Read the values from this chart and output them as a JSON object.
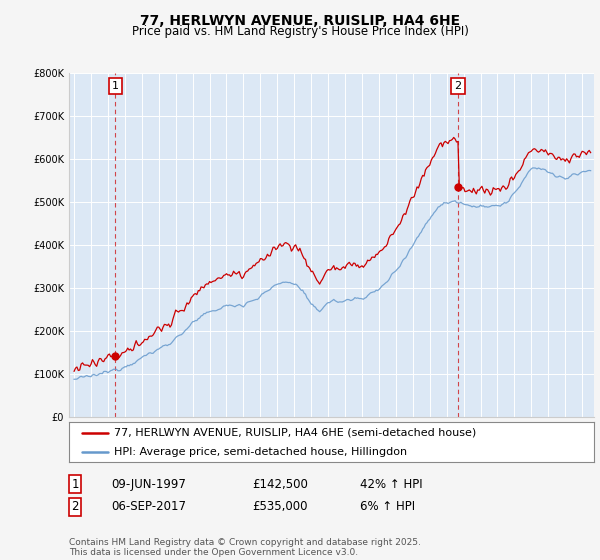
{
  "title": "77, HERLWYN AVENUE, RUISLIP, HA4 6HE",
  "subtitle": "Price paid vs. HM Land Registry's House Price Index (HPI)",
  "legend_line1": "77, HERLWYN AVENUE, RUISLIP, HA4 6HE (semi-detached house)",
  "legend_line2": "HPI: Average price, semi-detached house, Hillingdon",
  "annotation1": {
    "label": "1",
    "date": "09-JUN-1997",
    "price": "£142,500",
    "pct": "42% ↑ HPI"
  },
  "annotation2": {
    "label": "2",
    "date": "06-SEP-2017",
    "price": "£535,000",
    "pct": "6% ↑ HPI"
  },
  "footnote": "Contains HM Land Registry data © Crown copyright and database right 2025.\nThis data is licensed under the Open Government Licence v3.0.",
  "line1_color": "#cc0000",
  "line2_color": "#6699cc",
  "plot_bg_color": "#dce8f5",
  "fig_bg_color": "#f5f5f5",
  "ylim": [
    0,
    800000
  ],
  "yticks": [
    0,
    100000,
    200000,
    300000,
    400000,
    500000,
    600000,
    700000,
    800000
  ],
  "ytick_labels": [
    "£0",
    "£100K",
    "£200K",
    "£300K",
    "£400K",
    "£500K",
    "£600K",
    "£700K",
    "£800K"
  ],
  "xlim_start": 1994.7,
  "xlim_end": 2025.7,
  "marker1_x": 1997.44,
  "marker1_y": 142500,
  "marker2_x": 2017.67,
  "marker2_y": 535000,
  "title_fontsize": 10,
  "subtitle_fontsize": 8.5,
  "tick_fontsize": 7,
  "legend_fontsize": 8,
  "annotation_fontsize": 8,
  "footnote_fontsize": 6.5
}
